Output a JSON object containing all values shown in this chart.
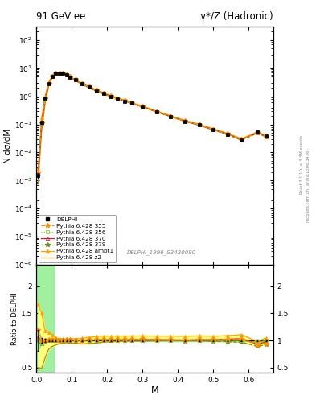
{
  "title_left": "91 GeV ee",
  "title_right": "γ*/Z (Hadronic)",
  "ylabel_main": "N dσ/dM",
  "ylabel_ratio": "Ratio to DELPHI",
  "xlabel": "M",
  "right_label": "Rivet 3.1.10, ≥ 3.3M events",
  "ref_label": "DELPHI_1996_S3430090",
  "watermark": "mcplots.cern.ch [arXiv:1306.3436]",
  "ylim_main": [
    1e-06,
    300.0
  ],
  "ylim_ratio": [
    0.4,
    2.4
  ],
  "xlim": [
    0.0,
    0.67
  ],
  "x_data": [
    0.005,
    0.015,
    0.025,
    0.035,
    0.045,
    0.055,
    0.065,
    0.075,
    0.085,
    0.095,
    0.11,
    0.13,
    0.15,
    0.17,
    0.19,
    0.21,
    0.23,
    0.25,
    0.27,
    0.3,
    0.34,
    0.38,
    0.42,
    0.46,
    0.5,
    0.54,
    0.58,
    0.625,
    0.65
  ],
  "delphi_y": [
    0.0015,
    0.12,
    0.85,
    2.8,
    5.0,
    6.5,
    6.8,
    6.5,
    5.8,
    4.9,
    3.8,
    2.8,
    2.1,
    1.6,
    1.25,
    1.0,
    0.82,
    0.68,
    0.56,
    0.42,
    0.28,
    0.19,
    0.13,
    0.095,
    0.065,
    0.045,
    0.028,
    0.055,
    0.038
  ],
  "delphi_yerr": [
    0.0003,
    0.005,
    0.02,
    0.05,
    0.08,
    0.1,
    0.1,
    0.09,
    0.08,
    0.07,
    0.05,
    0.04,
    0.03,
    0.02,
    0.018,
    0.015,
    0.012,
    0.01,
    0.008,
    0.006,
    0.004,
    0.003,
    0.002,
    0.0015,
    0.001,
    0.0008,
    0.0005,
    0.001,
    0.0008
  ],
  "pythia_355_y": [
    0.0018,
    0.12,
    0.85,
    2.85,
    5.1,
    6.6,
    6.85,
    6.55,
    5.85,
    4.95,
    3.82,
    2.82,
    2.12,
    1.62,
    1.27,
    1.02,
    0.83,
    0.69,
    0.57,
    0.43,
    0.285,
    0.192,
    0.131,
    0.097,
    0.066,
    0.046,
    0.029,
    0.05,
    0.036
  ],
  "pythia_356_y": [
    0.0015,
    0.115,
    0.84,
    2.82,
    5.05,
    6.52,
    6.82,
    6.52,
    5.82,
    4.92,
    3.81,
    2.81,
    2.11,
    1.61,
    1.26,
    1.01,
    0.825,
    0.685,
    0.565,
    0.425,
    0.282,
    0.191,
    0.13,
    0.096,
    0.065,
    0.045,
    0.028,
    0.052,
    0.038
  ],
  "pythia_370_y": [
    0.0016,
    0.118,
    0.85,
    2.83,
    5.05,
    6.53,
    6.83,
    6.53,
    5.83,
    4.93,
    3.82,
    2.82,
    2.115,
    1.615,
    1.265,
    1.015,
    0.828,
    0.688,
    0.568,
    0.428,
    0.284,
    0.192,
    0.131,
    0.096,
    0.066,
    0.046,
    0.029,
    0.051,
    0.037
  ],
  "pythia_379_y": [
    0.0015,
    0.113,
    0.83,
    2.81,
    5.02,
    6.51,
    6.81,
    6.51,
    5.81,
    4.91,
    3.8,
    2.8,
    2.1,
    1.6,
    1.255,
    1.005,
    0.822,
    0.682,
    0.562,
    0.422,
    0.28,
    0.19,
    0.129,
    0.095,
    0.064,
    0.044,
    0.027,
    0.049,
    0.035
  ],
  "pythia_ambt1_y": [
    0.0025,
    0.18,
    1.0,
    3.2,
    5.5,
    6.85,
    7.0,
    6.7,
    5.95,
    5.05,
    3.92,
    2.92,
    2.22,
    1.72,
    1.35,
    1.08,
    0.885,
    0.735,
    0.605,
    0.455,
    0.302,
    0.205,
    0.14,
    0.103,
    0.07,
    0.049,
    0.031,
    0.054,
    0.04
  ],
  "pythia_z2_y": [
    0.00075,
    0.058,
    0.58,
    2.35,
    4.45,
    5.95,
    6.4,
    6.15,
    5.55,
    4.65,
    3.6,
    2.62,
    1.98,
    1.52,
    1.21,
    0.975,
    0.805,
    0.67,
    0.553,
    0.415,
    0.278,
    0.189,
    0.129,
    0.094,
    0.064,
    0.045,
    0.028,
    0.053,
    0.038
  ],
  "color_355": "#FF8C00",
  "color_356": "#9ACD32",
  "color_370": "#DC143C",
  "color_379": "#6B8E23",
  "color_ambt1": "#FFA500",
  "color_z2": "#B8860B",
  "color_delphi": "#000000",
  "green_band_color": "#90EE90",
  "yellow_band_color": "#FFFF80"
}
